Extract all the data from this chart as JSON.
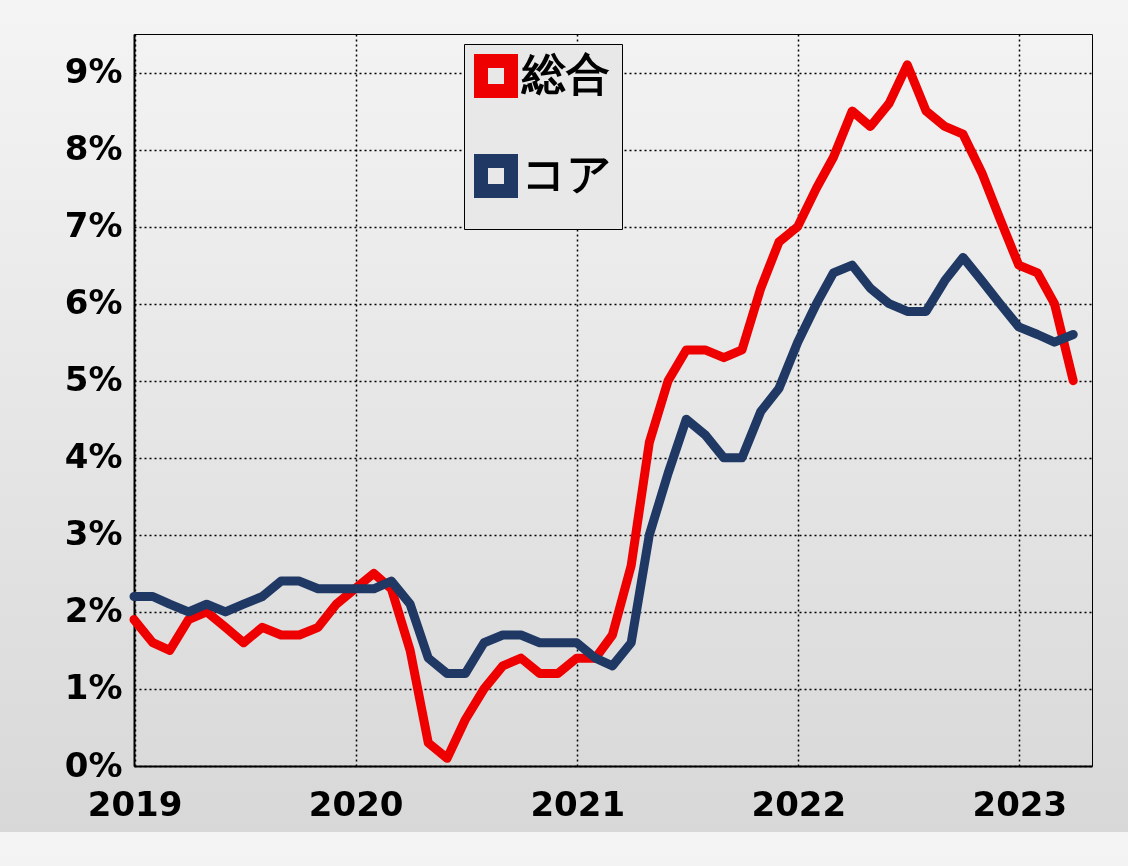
{
  "chart_data": {
    "type": "line",
    "x": [
      "2018-12-31",
      "2019-01-31",
      "2019-02-28",
      "2019-03-31",
      "2019-04-30",
      "2019-05-31",
      "2019-06-30",
      "2019-07-31",
      "2019-08-31",
      "2019-09-30",
      "2019-10-31",
      "2019-11-30",
      "2019-12-31",
      "2020-01-31",
      "2020-02-29",
      "2020-03-31",
      "2020-04-30",
      "2020-05-31",
      "2020-06-30",
      "2020-07-31",
      "2020-08-31",
      "2020-09-30",
      "2020-10-31",
      "2020-11-30",
      "2020-12-31",
      "2021-01-31",
      "2021-02-28",
      "2021-03-31",
      "2021-04-30",
      "2021-05-31",
      "2021-06-30",
      "2021-07-31",
      "2021-08-31",
      "2021-09-30",
      "2021-10-31",
      "2021-11-30",
      "2021-12-31",
      "2022-01-31",
      "2022-02-28",
      "2022-03-31",
      "2022-04-30",
      "2022-05-31",
      "2022-06-30",
      "2022-07-31",
      "2022-08-31",
      "2022-09-30",
      "2022-10-31",
      "2022-11-30",
      "2022-12-31",
      "2023-01-31",
      "2023-02-28",
      "2023-03-31"
    ],
    "series": [
      {
        "name": "総合",
        "color": "#ee0000",
        "values": [
          1.9,
          1.6,
          1.5,
          1.9,
          2.0,
          1.8,
          1.6,
          1.8,
          1.7,
          1.7,
          1.8,
          2.1,
          2.3,
          2.5,
          2.3,
          1.5,
          0.3,
          0.1,
          0.6,
          1.0,
          1.3,
          1.4,
          1.2,
          1.2,
          1.4,
          1.4,
          1.7,
          2.6,
          4.2,
          5.0,
          5.4,
          5.4,
          5.3,
          5.4,
          6.2,
          6.8,
          7.0,
          7.5,
          7.9,
          8.5,
          8.3,
          8.6,
          9.1,
          8.5,
          8.3,
          8.2,
          7.7,
          7.1,
          6.5,
          6.4,
          6.0,
          5.0
        ]
      },
      {
        "name": "コア",
        "color": "#1f3864",
        "values": [
          2.2,
          2.2,
          2.1,
          2.0,
          2.1,
          2.0,
          2.1,
          2.2,
          2.4,
          2.4,
          2.3,
          2.3,
          2.3,
          2.3,
          2.4,
          2.1,
          1.4,
          1.2,
          1.2,
          1.6,
          1.7,
          1.7,
          1.6,
          1.6,
          1.6,
          1.4,
          1.3,
          1.6,
          3.0,
          3.8,
          4.5,
          4.3,
          4.0,
          4.0,
          4.6,
          4.9,
          5.5,
          6.0,
          6.4,
          6.5,
          6.2,
          6.0,
          5.9,
          5.9,
          6.3,
          6.6,
          6.3,
          6.0,
          5.7,
          5.6,
          5.5,
          5.6
        ]
      }
    ],
    "xlim": [
      "2018-12-31",
      "2023-05-01"
    ],
    "xticks": [
      {
        "value": "2019-01-01",
        "label": "2019"
      },
      {
        "value": "2020-01-01",
        "label": "2020"
      },
      {
        "value": "2021-01-01",
        "label": "2021"
      },
      {
        "value": "2022-01-01",
        "label": "2022"
      },
      {
        "value": "2023-01-01",
        "label": "2023"
      }
    ],
    "ylim": [
      0,
      9.5
    ],
    "yticks": [
      {
        "value": 0,
        "label": "0%"
      },
      {
        "value": 1,
        "label": "1%"
      },
      {
        "value": 2,
        "label": "2%"
      },
      {
        "value": 3,
        "label": "3%"
      },
      {
        "value": 4,
        "label": "4%"
      },
      {
        "value": 5,
        "label": "5%"
      },
      {
        "value": 6,
        "label": "6%"
      },
      {
        "value": 7,
        "label": "7%"
      },
      {
        "value": 8,
        "label": "8%"
      },
      {
        "value": 9,
        "label": "9%"
      }
    ],
    "grid": true,
    "legend": "top",
    "marker": "none",
    "line_style": "solid"
  }
}
